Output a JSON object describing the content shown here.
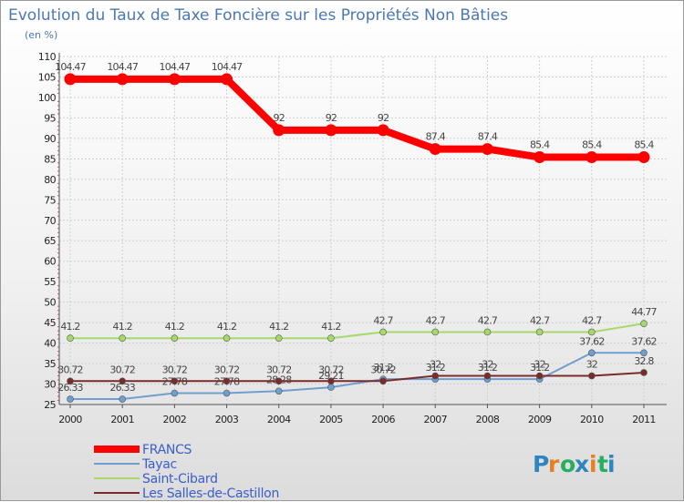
{
  "chart_data": {
    "type": "line",
    "title": "Evolution du Taux de Taxe Foncière sur les Propriétés Non Bâties",
    "ylabel": "(en %)",
    "xlabel": "",
    "ylim": [
      25,
      110
    ],
    "yticks": [
      25,
      30,
      35,
      40,
      45,
      50,
      55,
      60,
      65,
      70,
      75,
      80,
      85,
      90,
      95,
      100,
      105,
      110
    ],
    "x": [
      "2000",
      "2001",
      "2002",
      "2003",
      "2004",
      "2005",
      "2006",
      "2007",
      "2008",
      "2009",
      "2010",
      "2011"
    ],
    "grid": true,
    "legend_position": "bottom-left",
    "series": [
      {
        "name": "FRANCS",
        "color": "#ff0000",
        "values": [
          104.47,
          104.47,
          104.47,
          104.47,
          92,
          92,
          92,
          87.4,
          87.4,
          85.4,
          85.4,
          85.4
        ],
        "labels": [
          "104.47",
          "104.47",
          "104.47",
          "104.47",
          "92",
          "92",
          "92",
          "87.4",
          "87.4",
          "85.4",
          "85.4",
          "85.4"
        ]
      },
      {
        "name": "Tayac",
        "color": "#6f9fcf",
        "values": [
          26.33,
          26.33,
          27.78,
          27.78,
          28.28,
          29.21,
          31.2,
          31.2,
          31.2,
          31.2,
          37.62,
          37.62
        ],
        "labels": [
          "26.33",
          "26.33",
          "27.78",
          "27.78",
          "28.28",
          "29.21",
          "31.2",
          "31.2",
          "31.2",
          "31.2",
          "37.62",
          "37.62"
        ]
      },
      {
        "name": "Saint-Cibard",
        "color": "#a6d96a",
        "values": [
          41.2,
          41.2,
          41.2,
          41.2,
          41.2,
          41.2,
          42.7,
          42.7,
          42.7,
          42.7,
          42.7,
          44.77
        ],
        "labels": [
          "41.2",
          "41.2",
          "41.2",
          "41.2",
          "41.2",
          "41.2",
          "42.7",
          "42.7",
          "42.7",
          "42.7",
          "42.7",
          "44.77"
        ]
      },
      {
        "name": "Les Salles-de-Castillon",
        "color": "#7a2c2c",
        "values": [
          30.72,
          30.72,
          30.72,
          30.72,
          30.72,
          30.72,
          30.72,
          32,
          32,
          32,
          32,
          32.8
        ],
        "labels": [
          "30.72",
          "30.72",
          "30.72",
          "30.72",
          "30.72",
          "30.72",
          "30.72",
          "32",
          "32",
          "32",
          "32",
          "32.8"
        ]
      }
    ]
  },
  "brand": {
    "letters": [
      "P",
      "r",
      "o",
      "x",
      "i",
      "t",
      "i"
    ],
    "colors": [
      "#2e86c1",
      "#e67e22",
      "#27ae60",
      "#2e86c1",
      "#e67e22",
      "#27ae60",
      "#2e86c1"
    ]
  }
}
